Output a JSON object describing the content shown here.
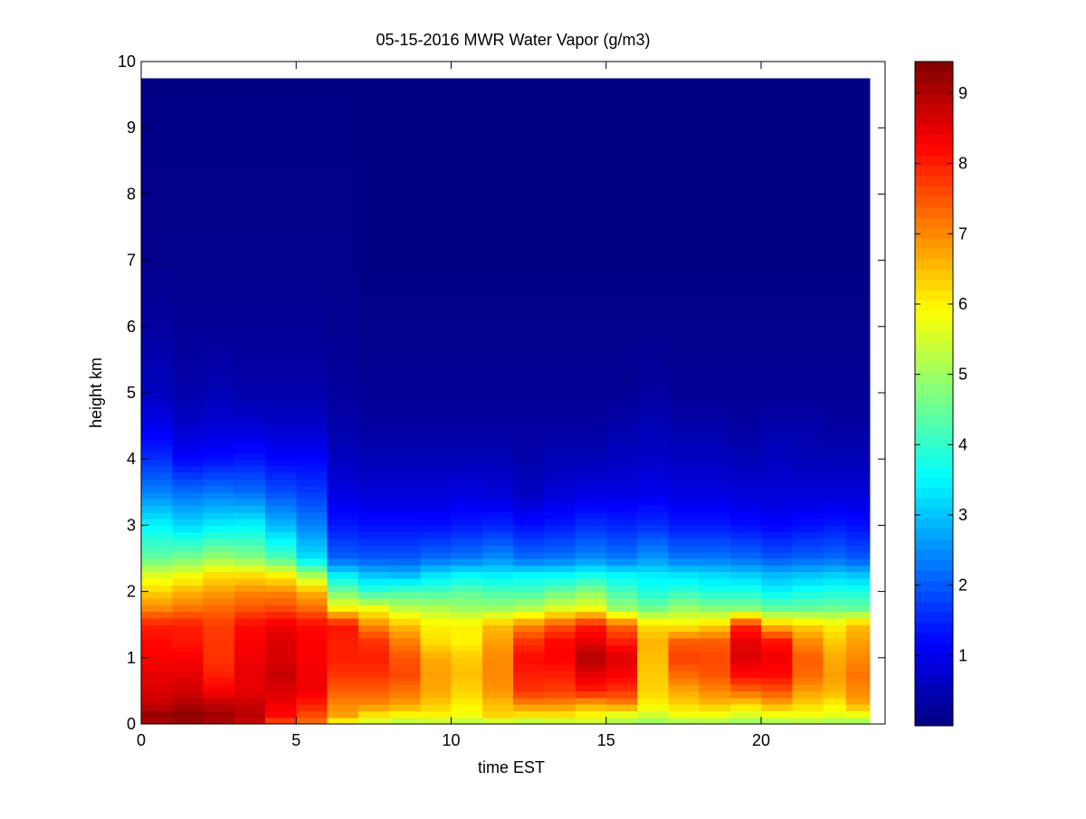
{
  "chart_data": {
    "type": "heatmap",
    "title": "05-15-2016 MWR Water Vapor (g/m3)",
    "xlabel": "time EST",
    "ylabel": "height km",
    "xlim": [
      0,
      24
    ],
    "ylim": [
      0,
      10
    ],
    "x_ticks": [
      0,
      5,
      10,
      15,
      20
    ],
    "y_ticks": [
      0,
      1,
      2,
      3,
      4,
      5,
      6,
      7,
      8,
      9,
      10
    ],
    "x_tick_labels": [
      "0",
      "5",
      "10",
      "15",
      "20"
    ],
    "y_tick_labels": [
      "0",
      "1",
      "2",
      "3",
      "4",
      "5",
      "6",
      "7",
      "8",
      "9",
      "10"
    ],
    "data_extent": {
      "x": [
        0,
        23.5
      ],
      "y": [
        0,
        9.75
      ]
    },
    "time_bin_centers": [
      0.5,
      1.5,
      2.5,
      3.5,
      4.5,
      5.5,
      6.5,
      7.5,
      8.5,
      9.5,
      10.5,
      11.5,
      12.5,
      13.5,
      14.5,
      15.5,
      16.5,
      17.5,
      18.5,
      19.5,
      20.5,
      21.5,
      22.5,
      23.0
    ],
    "profile_heights_km": [
      0,
      0.15,
      0.3,
      0.5,
      0.75,
      1.0,
      1.25,
      1.5,
      1.75,
      2.0,
      2.25,
      2.5,
      3.0,
      3.5,
      4.0,
      4.5,
      5.0,
      6.0,
      7.0,
      9.75
    ],
    "profiles_g_per_m3": [
      [
        9.0,
        9.2,
        8.8,
        8.6,
        8.5,
        8.3,
        8.2,
        8.0,
        7.0,
        6.3,
        5.6,
        4.5,
        3.5,
        2.4,
        1.6,
        1.0,
        0.6,
        0.3,
        0.1,
        0.05
      ],
      [
        9.2,
        9.3,
        9.0,
        8.7,
        8.5,
        8.3,
        8.1,
        8.0,
        7.2,
        6.6,
        5.8,
        4.7,
        3.2,
        2.2,
        1.2,
        0.7,
        0.4,
        0.2,
        0.1,
        0.05
      ],
      [
        9.0,
        9.1,
        8.9,
        8.3,
        8.0,
        7.8,
        7.8,
        7.7,
        7.3,
        6.8,
        6.2,
        5.0,
        3.4,
        2.3,
        1.3,
        0.8,
        0.5,
        0.2,
        0.1,
        0.05
      ],
      [
        8.7,
        8.9,
        8.8,
        8.5,
        8.5,
        8.4,
        8.3,
        8.2,
        7.5,
        7.0,
        6.2,
        4.8,
        3.5,
        2.2,
        1.4,
        0.8,
        0.4,
        0.2,
        0.1,
        0.05
      ],
      [
        7.5,
        8.2,
        8.4,
        8.6,
        8.8,
        8.6,
        8.6,
        8.4,
        7.6,
        7.0,
        6.0,
        4.3,
        2.9,
        1.9,
        1.2,
        0.7,
        0.4,
        0.2,
        0.1,
        0.05
      ],
      [
        7.2,
        7.6,
        8.0,
        8.4,
        8.4,
        8.3,
        8.3,
        8.2,
        7.3,
        6.6,
        5.1,
        3.3,
        2.4,
        1.7,
        1.2,
        0.7,
        0.4,
        0.2,
        0.1,
        0.05
      ],
      [
        5.7,
        6.8,
        7.0,
        7.4,
        7.8,
        8.0,
        8.0,
        8.1,
        6.0,
        4.6,
        3.4,
        2.1,
        1.4,
        0.9,
        0.6,
        0.4,
        0.25,
        0.15,
        0.1,
        0.05
      ],
      [
        5.3,
        6.2,
        7.0,
        7.4,
        7.8,
        8.0,
        7.8,
        7.0,
        5.8,
        4.0,
        3.0,
        2.0,
        1.3,
        0.8,
        0.5,
        0.3,
        0.2,
        0.1,
        0.05,
        0.05
      ],
      [
        5.1,
        6.0,
        6.8,
        7.2,
        7.6,
        7.5,
        7.1,
        6.5,
        5.3,
        4.2,
        2.9,
        2.0,
        1.3,
        0.8,
        0.5,
        0.3,
        0.2,
        0.1,
        0.05,
        0.05
      ],
      [
        5.2,
        6.0,
        6.4,
        6.7,
        6.8,
        6.7,
        6.2,
        6.0,
        5.2,
        4.2,
        3.3,
        2.2,
        1.3,
        0.8,
        0.5,
        0.3,
        0.2,
        0.1,
        0.05,
        0.05
      ],
      [
        5.2,
        5.8,
        6.0,
        6.3,
        6.5,
        6.4,
        6.0,
        6.0,
        5.0,
        4.4,
        3.5,
        2.3,
        1.4,
        0.9,
        0.5,
        0.3,
        0.2,
        0.1,
        0.05,
        0.05
      ],
      [
        5.2,
        6.3,
        6.5,
        6.9,
        7.0,
        7.0,
        6.8,
        6.5,
        5.0,
        4.2,
        3.4,
        2.5,
        1.5,
        0.8,
        0.5,
        0.3,
        0.2,
        0.1,
        0.05,
        0.05
      ],
      [
        5.0,
        6.2,
        7.0,
        7.8,
        8.0,
        8.2,
        7.8,
        7.0,
        5.2,
        4.2,
        3.5,
        2.2,
        1.3,
        0.6,
        0.4,
        0.3,
        0.2,
        0.1,
        0.05,
        0.05
      ],
      [
        5.1,
        6.2,
        7.0,
        7.7,
        8.0,
        8.3,
        8.2,
        7.5,
        5.6,
        4.5,
        3.5,
        2.3,
        1.4,
        0.8,
        0.5,
        0.3,
        0.2,
        0.1,
        0.05,
        0.05
      ],
      [
        5.3,
        6.0,
        6.7,
        8.0,
        8.5,
        9.0,
        8.5,
        8.0,
        5.8,
        4.8,
        3.7,
        2.5,
        1.6,
        0.9,
        0.5,
        0.3,
        0.2,
        0.1,
        0.05,
        0.05
      ],
      [
        5.0,
        5.7,
        7.0,
        7.8,
        8.3,
        8.6,
        8.0,
        7.3,
        5.0,
        4.2,
        3.5,
        2.3,
        1.5,
        0.9,
        0.6,
        0.4,
        0.2,
        0.1,
        0.05,
        0.05
      ],
      [
        4.8,
        5.5,
        6.0,
        6.3,
        6.4,
        6.5,
        6.6,
        6.2,
        4.6,
        3.8,
        3.4,
        2.6,
        1.6,
        1.0,
        0.7,
        0.5,
        0.3,
        0.1,
        0.05,
        0.05
      ],
      [
        4.9,
        5.8,
        6.3,
        6.7,
        7.3,
        7.7,
        7.4,
        6.0,
        5.0,
        4.0,
        3.3,
        2.3,
        1.4,
        0.9,
        0.6,
        0.4,
        0.2,
        0.1,
        0.05,
        0.05
      ],
      [
        5.0,
        5.8,
        6.5,
        7.0,
        7.5,
        7.6,
        7.4,
        6.3,
        4.8,
        3.8,
        3.2,
        2.3,
        1.4,
        0.9,
        0.6,
        0.4,
        0.2,
        0.1,
        0.05,
        0.05
      ],
      [
        4.8,
        5.6,
        6.3,
        7.3,
        8.2,
        8.6,
        8.5,
        7.9,
        4.8,
        3.8,
        3.1,
        2.2,
        1.3,
        0.8,
        0.5,
        0.3,
        0.2,
        0.1,
        0.05,
        0.05
      ],
      [
        4.9,
        5.8,
        6.7,
        7.5,
        8.2,
        8.4,
        8.1,
        6.5,
        4.5,
        3.5,
        2.9,
        2.0,
        1.2,
        0.8,
        0.6,
        0.4,
        0.2,
        0.1,
        0.05,
        0.05
      ],
      [
        5.0,
        5.8,
        6.3,
        6.8,
        7.3,
        7.4,
        7.0,
        6.3,
        4.5,
        3.7,
        3.0,
        2.1,
        1.3,
        0.8,
        0.5,
        0.4,
        0.2,
        0.1,
        0.05,
        0.05
      ],
      [
        4.9,
        5.7,
        6.0,
        6.6,
        6.8,
        6.7,
        6.4,
        6.0,
        4.6,
        3.8,
        3.1,
        2.2,
        1.4,
        0.8,
        0.5,
        0.3,
        0.2,
        0.1,
        0.05,
        0.05
      ],
      [
        4.8,
        5.8,
        6.7,
        7.0,
        7.2,
        7.0,
        6.8,
        6.5,
        4.5,
        3.8,
        3.0,
        2.0,
        1.3,
        0.8,
        0.5,
        0.3,
        0.2,
        0.1,
        0.05,
        0.05
      ]
    ],
    "colormap": "jet",
    "colorbar": {
      "range": [
        0,
        9.45
      ],
      "ticks": [
        1,
        2,
        3,
        4,
        5,
        6,
        7,
        8,
        9
      ],
      "tick_labels": [
        "1",
        "2",
        "3",
        "4",
        "5",
        "6",
        "7",
        "8",
        "9"
      ]
    },
    "grid": false,
    "background_color": "#ffffff",
    "colors": {
      "empty_area": "#ffffff",
      "axis": "#000000"
    }
  }
}
